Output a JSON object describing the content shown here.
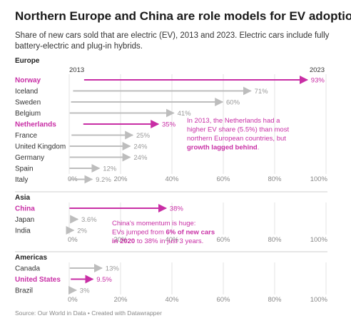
{
  "title": "Northern Europe and China are role models for EV adoption",
  "subtitle": "Share of new cars sold that are electric (EV), 2013 and 2023. Electric cars include fully battery-electric and plug-in hybrids.",
  "footer": "Source: Our World in Data • Created with Datawrapper",
  "colors": {
    "highlight": "#c82ea5",
    "muted": "#bdbdbd",
    "grid": "#e3e3e3"
  },
  "chart_data": {
    "type": "arrow-dot",
    "unit": "%",
    "start_year_label": "2013",
    "end_year_label": "2023",
    "x_ticks": [
      "0%",
      "20%",
      "40%",
      "60%",
      "80%",
      "100%"
    ],
    "xlim": [
      0,
      100
    ],
    "grid": true,
    "groups": [
      {
        "name": "Europe",
        "rows": [
          {
            "label": "Norway",
            "start": 5.8,
            "end": 93,
            "value_label": "93%",
            "highlight": true
          },
          {
            "label": "Iceland",
            "start": 1.5,
            "end": 71,
            "value_label": "71%",
            "highlight": false
          },
          {
            "label": "Sweden",
            "start": 0.7,
            "end": 60,
            "value_label": "60%",
            "highlight": false
          },
          {
            "label": "Belgium",
            "start": 0.2,
            "end": 41,
            "value_label": "41%",
            "highlight": false
          },
          {
            "label": "Netherlands",
            "start": 5.5,
            "end": 35,
            "value_label": "35%",
            "highlight": true
          },
          {
            "label": "France",
            "start": 0.9,
            "end": 25,
            "value_label": "25%",
            "highlight": false
          },
          {
            "label": "United Kingdom",
            "start": 0.2,
            "end": 24,
            "value_label": "24%",
            "highlight": false
          },
          {
            "label": "Germany",
            "start": 0.2,
            "end": 24,
            "value_label": "24%",
            "highlight": false
          },
          {
            "label": "Spain",
            "start": 0.1,
            "end": 12,
            "value_label": "12%",
            "highlight": false
          },
          {
            "label": "Italy",
            "start": 0.1,
            "end": 9.2,
            "value_label": "9.2%",
            "highlight": false
          }
        ],
        "annotation": [
          {
            "text": "In 2013, the Netherlands had a",
            "bold": false
          },
          {
            "text": "higher EV share (5.5%) than most",
            "bold": false
          },
          {
            "text": "northern European countries, but",
            "bold": false
          },
          {
            "text": "growth lagged behind",
            "bold": true,
            "suffix": "."
          }
        ]
      },
      {
        "name": "Asia",
        "rows": [
          {
            "label": "China",
            "start": 0.1,
            "end": 38,
            "value_label": "38%",
            "highlight": true
          },
          {
            "label": "Japan",
            "start": 0.9,
            "end": 3.6,
            "value_label": "3.6%",
            "highlight": false
          },
          {
            "label": "India",
            "start": 0.0,
            "end": 2,
            "value_label": "2%",
            "highlight": false
          }
        ],
        "annotation": [
          {
            "parts": [
              {
                "text": "China's momentum is huge:",
                "bold": false
              }
            ]
          },
          {
            "parts": [
              {
                "text": "EVs jumped from ",
                "bold": false
              },
              {
                "text": "6% of new cars",
                "bold": true
              }
            ]
          },
          {
            "parts": [
              {
                "text": "in 2020",
                "bold": true
              },
              {
                "text": " to 38% in just 3 years.",
                "bold": false
              }
            ]
          }
        ]
      },
      {
        "name": "Americas",
        "rows": [
          {
            "label": "Canada",
            "start": 0.2,
            "end": 13,
            "value_label": "13%",
            "highlight": false
          },
          {
            "label": "United States",
            "start": 0.6,
            "end": 9.5,
            "value_label": "9.5%",
            "highlight": true
          },
          {
            "label": "Brazil",
            "start": 0.0,
            "end": 3,
            "value_label": "3%",
            "highlight": false
          }
        ]
      }
    ]
  }
}
